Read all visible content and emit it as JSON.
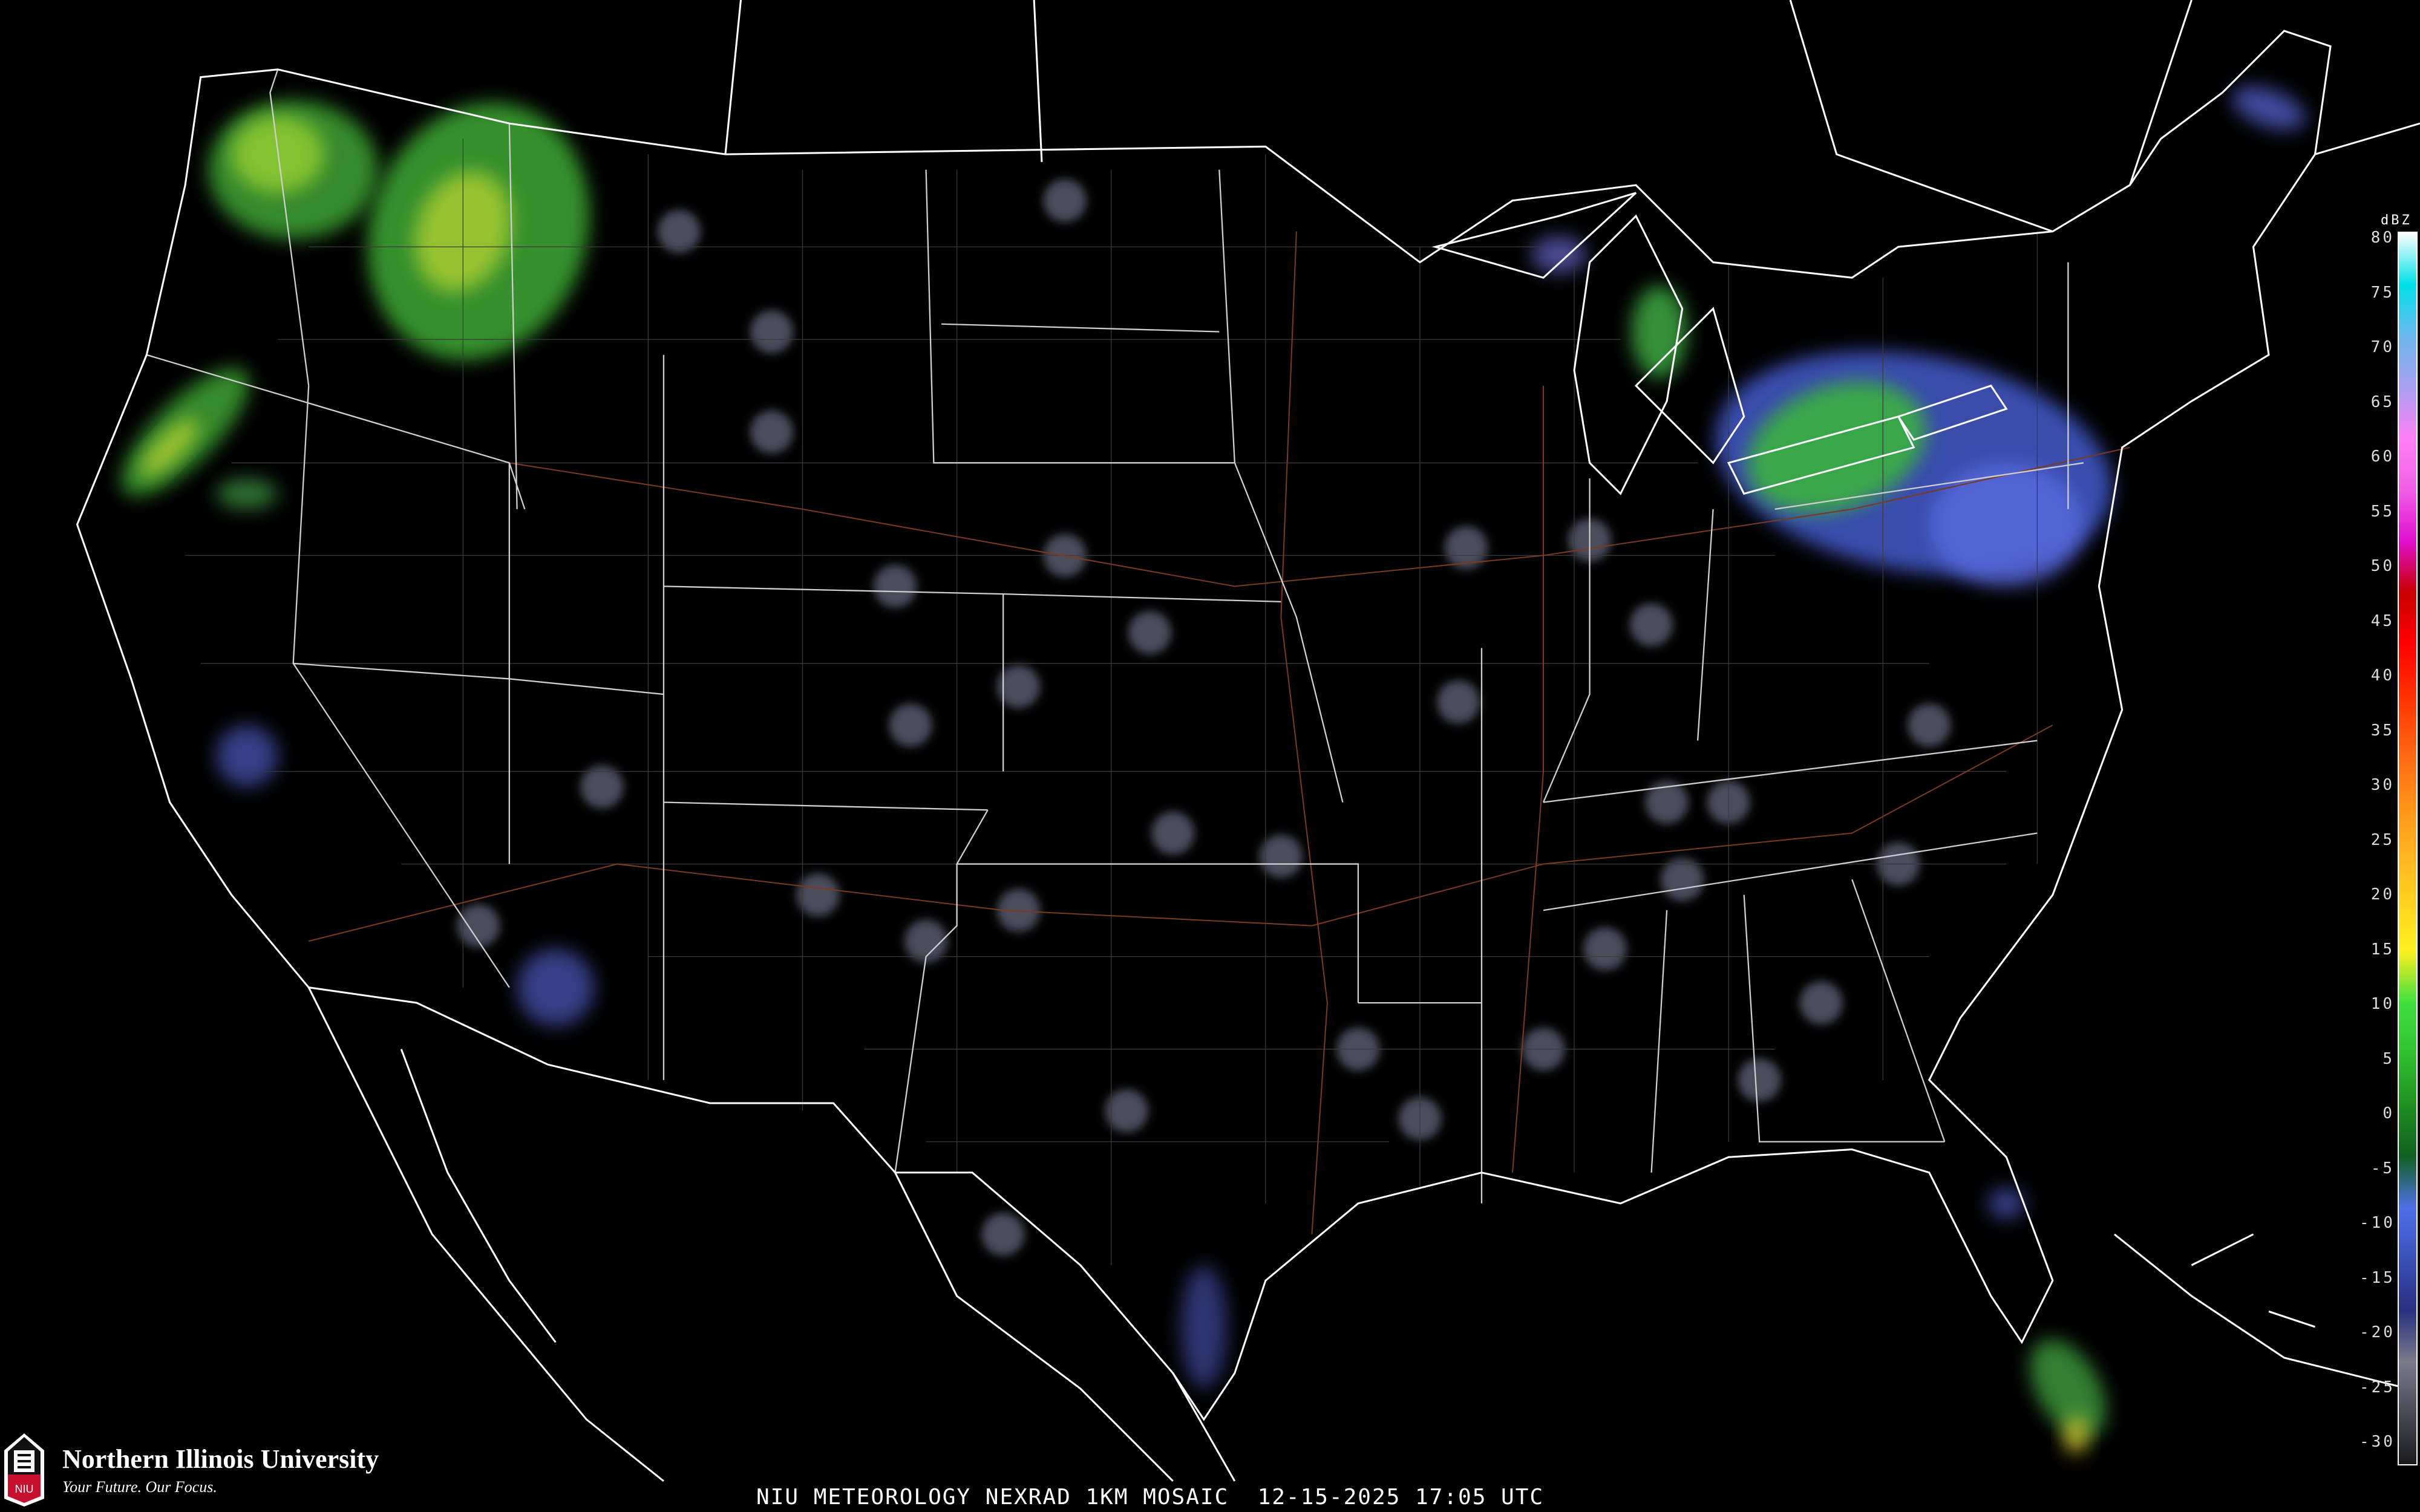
{
  "caption": "NIU METEOROLOGY NEXRAD 1KM MOSAIC  12-15-2025 17:05 UTC",
  "logo": {
    "name": "Northern Illinois University",
    "tagline": "Your Future. Our Focus.",
    "mark": "NIU"
  },
  "legend": {
    "unit": "dBZ",
    "labels": [
      "80",
      "75",
      "70",
      "65",
      "60",
      "55",
      "50",
      "45",
      "40",
      "35",
      "30",
      "25",
      "20",
      "15",
      "10",
      "5",
      "0",
      "-5",
      "-10",
      "-15",
      "-20",
      "-25",
      "-30"
    ],
    "colors": [
      "#ffffff",
      "#00e0e8",
      "#6ab8ee",
      "#a8a0f0",
      "#ff80f4",
      "#f060e8",
      "#e010d0",
      "#c80000",
      "#ff0000",
      "#ff3000",
      "#ff6010",
      "#ff8c18",
      "#ffb020",
      "#ffd020",
      "#fff020",
      "#40e040",
      "#30c030",
      "#209020",
      "#106020",
      "#5070e8",
      "#3a50b8",
      "#283080",
      "#7a7a8a",
      "#4a4a55",
      "#1a1a1e"
    ]
  },
  "map": {
    "border_color": "#ffffff",
    "county_color": "#555555",
    "road_color": "#8a4a2a"
  }
}
